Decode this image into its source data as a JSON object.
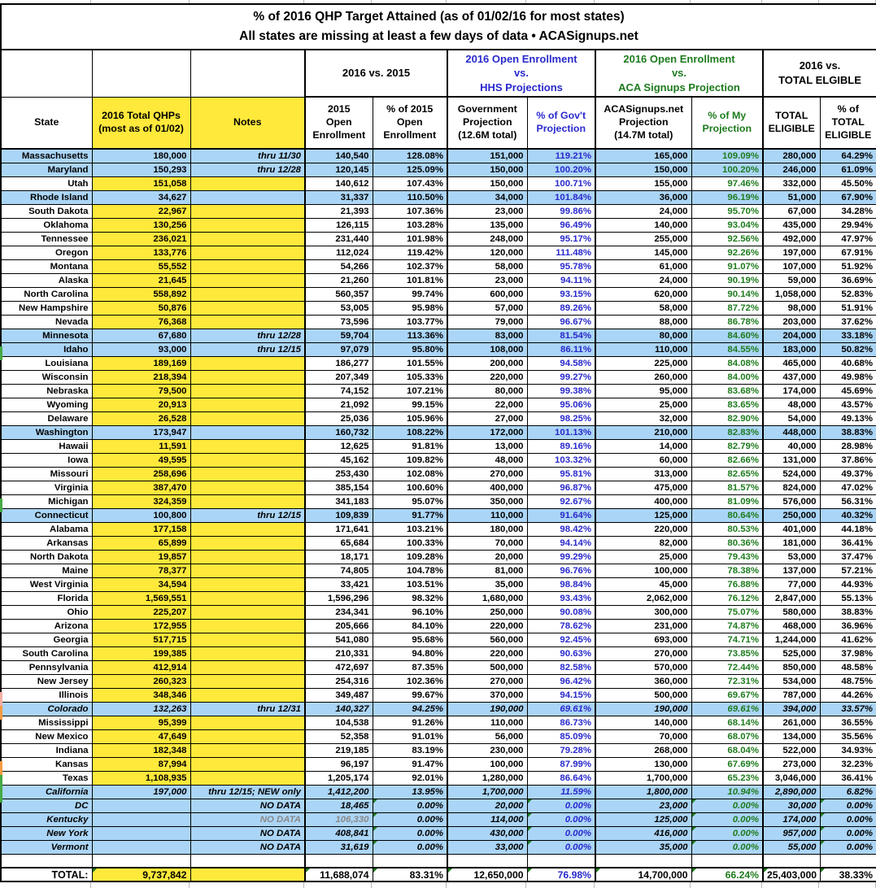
{
  "title": {
    "line1": "% of 2016 QHP Target Attained (as of 01/02/16 for most states)",
    "line2": "All states are missing at least a few days of data • ACASignups.net"
  },
  "colors": {
    "highlight_yellow": "#FFE93B",
    "highlight_blue": "#ABD5F6",
    "gov_projection_text": "#2929CC",
    "my_projection_text": "#1E7B1E",
    "marker_green": "#44AA44",
    "marker_orange": "#F59B42",
    "marker_salmon": "#F4AFA4"
  },
  "group_headers": [
    {
      "label": "",
      "span": 1,
      "color": "black",
      "grp": false
    },
    {
      "label": "",
      "span": 1,
      "color": "black",
      "grp": false
    },
    {
      "label": "",
      "span": 1,
      "color": "black",
      "grp": false
    },
    {
      "label": "2016 vs. 2015",
      "span": 2,
      "color": "black",
      "grp": true
    },
    {
      "label": "2016 Open Enrollment\nvs.\nHHS Projections",
      "span": 2,
      "color": "blue",
      "grp": true
    },
    {
      "label": "2016 Open Enrollment\nvs.\nACA Signups Projection",
      "span": 2,
      "color": "green",
      "grp": true
    },
    {
      "label": "2016 vs.\nTOTAL ELGIBLE",
      "span": 2,
      "color": "black",
      "grp": true
    }
  ],
  "columns": [
    {
      "key": "state",
      "label": "State",
      "color": "black"
    },
    {
      "key": "qhp",
      "label": "2016 Total QHPs\n(most as of 01/02)",
      "color": "black",
      "yellow": true
    },
    {
      "key": "notes",
      "label": "Notes",
      "color": "black",
      "yellow": true
    },
    {
      "key": "e2015",
      "label": "2015\nOpen\nEnrollment",
      "color": "black",
      "thickLeft": true
    },
    {
      "key": "p2015",
      "label": "% of 2015\nOpen\nEnrollment",
      "color": "black"
    },
    {
      "key": "gov",
      "label": "Government\nProjection\n(12.6M total)",
      "color": "black",
      "thickLeft": true
    },
    {
      "key": "pgov",
      "label": "% of Gov't\nProjection",
      "color": "blue"
    },
    {
      "key": "aca",
      "label": "ACASignups.net\nProjection\n(14.7M total)",
      "color": "black",
      "thickLeft": true
    },
    {
      "key": "pmy",
      "label": "% of My\nProjection",
      "color": "green"
    },
    {
      "key": "elig",
      "label": "TOTAL\nELIGIBLE",
      "color": "black",
      "thickLeft": true
    },
    {
      "key": "pelig",
      "label": "% of\nTOTAL\nELIGIBLE",
      "color": "black"
    }
  ],
  "rows": [
    {
      "state": "Massachusetts",
      "qhp": "180,000",
      "notes": "thru 11/30",
      "e2015": "140,540",
      "p2015": "128.08%",
      "gov": "151,000",
      "pgov": "119.21%",
      "aca": "165,000",
      "pmy": "109.09%",
      "elig": "280,000",
      "pelig": "64.29%",
      "hl": true
    },
    {
      "state": "Maryland",
      "qhp": "150,293",
      "notes": "thru 12/28",
      "e2015": "120,145",
      "p2015": "125.09%",
      "gov": "150,000",
      "pgov": "100.20%",
      "aca": "150,000",
      "pmy": "100.20%",
      "elig": "246,000",
      "pelig": "61.09%",
      "hl": true
    },
    {
      "state": "Utah",
      "qhp": "151,058",
      "notes": "",
      "e2015": "140,612",
      "p2015": "107.43%",
      "gov": "150,000",
      "pgov": "100.71%",
      "aca": "155,000",
      "pmy": "97.46%",
      "elig": "332,000",
      "pelig": "45.50%"
    },
    {
      "state": "Rhode Island",
      "qhp": "34,627",
      "notes": "",
      "e2015": "31,337",
      "p2015": "110.50%",
      "gov": "34,000",
      "pgov": "101.84%",
      "aca": "36,000",
      "pmy": "96.19%",
      "elig": "51,000",
      "pelig": "67.90%",
      "hl": true
    },
    {
      "state": "South Dakota",
      "qhp": "22,967",
      "notes": "",
      "e2015": "21,393",
      "p2015": "107.36%",
      "gov": "23,000",
      "pgov": "99.86%",
      "aca": "24,000",
      "pmy": "95.70%",
      "elig": "67,000",
      "pelig": "34.28%"
    },
    {
      "state": "Oklahoma",
      "qhp": "130,256",
      "notes": "",
      "e2015": "126,115",
      "p2015": "103.28%",
      "gov": "135,000",
      "pgov": "96.49%",
      "aca": "140,000",
      "pmy": "93.04%",
      "elig": "435,000",
      "pelig": "29.94%"
    },
    {
      "state": "Tennessee",
      "qhp": "236,021",
      "notes": "",
      "e2015": "231,440",
      "p2015": "101.98%",
      "gov": "248,000",
      "pgov": "95.17%",
      "aca": "255,000",
      "pmy": "92.56%",
      "elig": "492,000",
      "pelig": "47.97%"
    },
    {
      "state": "Oregon",
      "qhp": "133,776",
      "notes": "",
      "e2015": "112,024",
      "p2015": "119.42%",
      "gov": "120,000",
      "pgov": "111.48%",
      "aca": "145,000",
      "pmy": "92.26%",
      "elig": "197,000",
      "pelig": "67.91%"
    },
    {
      "state": "Montana",
      "qhp": "55,552",
      "notes": "",
      "e2015": "54,266",
      "p2015": "102.37%",
      "gov": "58,000",
      "pgov": "95.78%",
      "aca": "61,000",
      "pmy": "91.07%",
      "elig": "107,000",
      "pelig": "51.92%"
    },
    {
      "state": "Alaska",
      "qhp": "21,645",
      "notes": "",
      "e2015": "21,260",
      "p2015": "101.81%",
      "gov": "23,000",
      "pgov": "94.11%",
      "aca": "24,000",
      "pmy": "90.19%",
      "elig": "59,000",
      "pelig": "36.69%"
    },
    {
      "state": "North Carolina",
      "qhp": "558,892",
      "notes": "",
      "e2015": "560,357",
      "p2015": "99.74%",
      "gov": "600,000",
      "pgov": "93.15%",
      "aca": "620,000",
      "pmy": "90.14%",
      "elig": "1,058,000",
      "pelig": "52.83%"
    },
    {
      "state": "New Hampshire",
      "qhp": "50,876",
      "notes": "",
      "e2015": "53,005",
      "p2015": "95.98%",
      "gov": "57,000",
      "pgov": "89.26%",
      "aca": "58,000",
      "pmy": "87.72%",
      "elig": "98,000",
      "pelig": "51.91%"
    },
    {
      "state": "Nevada",
      "qhp": "76,368",
      "notes": "",
      "e2015": "73,596",
      "p2015": "103.77%",
      "gov": "79,000",
      "pgov": "96.67%",
      "aca": "88,000",
      "pmy": "86.78%",
      "elig": "203,000",
      "pelig": "37.62%"
    },
    {
      "state": "Minnesota",
      "qhp": "67,680",
      "notes": "thru 12/28",
      "e2015": "59,704",
      "p2015": "113.36%",
      "gov": "83,000",
      "pgov": "81.54%",
      "aca": "80,000",
      "pmy": "84.60%",
      "elig": "204,000",
      "pelig": "33.18%",
      "hl": true
    },
    {
      "state": "Idaho",
      "qhp": "93,000",
      "notes": "thru 12/15",
      "e2015": "97,079",
      "p2015": "95.80%",
      "gov": "108,000",
      "pgov": "86.11%",
      "aca": "110,000",
      "pmy": "84.55%",
      "elig": "183,000",
      "pelig": "50.82%",
      "hl": true
    },
    {
      "state": "Louisiana",
      "qhp": "189,169",
      "notes": "",
      "e2015": "186,277",
      "p2015": "101.55%",
      "gov": "200,000",
      "pgov": "94.58%",
      "aca": "225,000",
      "pmy": "84.08%",
      "elig": "465,000",
      "pelig": "40.68%"
    },
    {
      "state": "Wisconsin",
      "qhp": "218,394",
      "notes": "",
      "e2015": "207,349",
      "p2015": "105.33%",
      "gov": "220,000",
      "pgov": "99.27%",
      "aca": "260,000",
      "pmy": "84.00%",
      "elig": "437,000",
      "pelig": "49.98%"
    },
    {
      "state": "Nebraska",
      "qhp": "79,500",
      "notes": "",
      "e2015": "74,152",
      "p2015": "107.21%",
      "gov": "80,000",
      "pgov": "99.38%",
      "aca": "95,000",
      "pmy": "83.68%",
      "elig": "174,000",
      "pelig": "45.69%"
    },
    {
      "state": "Wyoming",
      "qhp": "20,913",
      "notes": "",
      "e2015": "21,092",
      "p2015": "99.15%",
      "gov": "22,000",
      "pgov": "95.06%",
      "aca": "25,000",
      "pmy": "83.65%",
      "elig": "48,000",
      "pelig": "43.57%"
    },
    {
      "state": "Delaware",
      "qhp": "26,528",
      "notes": "",
      "e2015": "25,036",
      "p2015": "105.96%",
      "gov": "27,000",
      "pgov": "98.25%",
      "aca": "32,000",
      "pmy": "82.90%",
      "elig": "54,000",
      "pelig": "49.13%"
    },
    {
      "state": "Washington",
      "qhp": "173,947",
      "notes": "",
      "e2015": "160,732",
      "p2015": "108.22%",
      "gov": "172,000",
      "pgov": "101.13%",
      "aca": "210,000",
      "pmy": "82.83%",
      "elig": "448,000",
      "pelig": "38.83%",
      "hl": true
    },
    {
      "state": "Hawaii",
      "qhp": "11,591",
      "notes": "",
      "e2015": "12,625",
      "p2015": "91.81%",
      "gov": "13,000",
      "pgov": "89.16%",
      "aca": "14,000",
      "pmy": "82.79%",
      "elig": "40,000",
      "pelig": "28.98%"
    },
    {
      "state": "Iowa",
      "qhp": "49,595",
      "notes": "",
      "e2015": "45,162",
      "p2015": "109.82%",
      "gov": "48,000",
      "pgov": "103.32%",
      "aca": "60,000",
      "pmy": "82.66%",
      "elig": "131,000",
      "pelig": "37.86%"
    },
    {
      "state": "Missouri",
      "qhp": "258,696",
      "notes": "",
      "e2015": "253,430",
      "p2015": "102.08%",
      "gov": "270,000",
      "pgov": "95.81%",
      "aca": "313,000",
      "pmy": "82.65%",
      "elig": "524,000",
      "pelig": "49.37%"
    },
    {
      "state": "Virginia",
      "qhp": "387,470",
      "notes": "",
      "e2015": "385,154",
      "p2015": "100.60%",
      "gov": "400,000",
      "pgov": "96.87%",
      "aca": "475,000",
      "pmy": "81.57%",
      "elig": "824,000",
      "pelig": "47.02%"
    },
    {
      "state": "Michigan",
      "qhp": "324,359",
      "notes": "",
      "e2015": "341,183",
      "p2015": "95.07%",
      "gov": "350,000",
      "pgov": "92.67%",
      "aca": "400,000",
      "pmy": "81.09%",
      "elig": "576,000",
      "pelig": "56.31%"
    },
    {
      "state": "Connecticut",
      "qhp": "100,800",
      "notes": "thru 12/15",
      "e2015": "109,839",
      "p2015": "91.77%",
      "gov": "110,000",
      "pgov": "91.64%",
      "aca": "125,000",
      "pmy": "80.64%",
      "elig": "250,000",
      "pelig": "40.32%",
      "hl": true
    },
    {
      "state": "Alabama",
      "qhp": "177,158",
      "notes": "",
      "e2015": "171,641",
      "p2015": "103.21%",
      "gov": "180,000",
      "pgov": "98.42%",
      "aca": "220,000",
      "pmy": "80.53%",
      "elig": "401,000",
      "pelig": "44.18%"
    },
    {
      "state": "Arkansas",
      "qhp": "65,899",
      "notes": "",
      "e2015": "65,684",
      "p2015": "100.33%",
      "gov": "70,000",
      "pgov": "94.14%",
      "aca": "82,000",
      "pmy": "80.36%",
      "elig": "181,000",
      "pelig": "36.41%"
    },
    {
      "state": "North Dakota",
      "qhp": "19,857",
      "notes": "",
      "e2015": "18,171",
      "p2015": "109.28%",
      "gov": "20,000",
      "pgov": "99.29%",
      "aca": "25,000",
      "pmy": "79.43%",
      "elig": "53,000",
      "pelig": "37.47%"
    },
    {
      "state": "Maine",
      "qhp": "78,377",
      "notes": "",
      "e2015": "74,805",
      "p2015": "104.78%",
      "gov": "81,000",
      "pgov": "96.76%",
      "aca": "100,000",
      "pmy": "78.38%",
      "elig": "137,000",
      "pelig": "57.21%"
    },
    {
      "state": "West Virginia",
      "qhp": "34,594",
      "notes": "",
      "e2015": "33,421",
      "p2015": "103.51%",
      "gov": "35,000",
      "pgov": "98.84%",
      "aca": "45,000",
      "pmy": "76.88%",
      "elig": "77,000",
      "pelig": "44.93%"
    },
    {
      "state": "Florida",
      "qhp": "1,569,551",
      "notes": "",
      "e2015": "1,596,296",
      "p2015": "98.32%",
      "gov": "1,680,000",
      "pgov": "93.43%",
      "aca": "2,062,000",
      "pmy": "76.12%",
      "elig": "2,847,000",
      "pelig": "55.13%"
    },
    {
      "state": "Ohio",
      "qhp": "225,207",
      "notes": "",
      "e2015": "234,341",
      "p2015": "96.10%",
      "gov": "250,000",
      "pgov": "90.08%",
      "aca": "300,000",
      "pmy": "75.07%",
      "elig": "580,000",
      "pelig": "38.83%"
    },
    {
      "state": "Arizona",
      "qhp": "172,955",
      "notes": "",
      "e2015": "205,666",
      "p2015": "84.10%",
      "gov": "220,000",
      "pgov": "78.62%",
      "aca": "231,000",
      "pmy": "74.87%",
      "elig": "468,000",
      "pelig": "36.96%"
    },
    {
      "state": "Georgia",
      "qhp": "517,715",
      "notes": "",
      "e2015": "541,080",
      "p2015": "95.68%",
      "gov": "560,000",
      "pgov": "92.45%",
      "aca": "693,000",
      "pmy": "74.71%",
      "elig": "1,244,000",
      "pelig": "41.62%"
    },
    {
      "state": "South Carolina",
      "qhp": "199,385",
      "notes": "",
      "e2015": "210,331",
      "p2015": "94.80%",
      "gov": "220,000",
      "pgov": "90.63%",
      "aca": "270,000",
      "pmy": "73.85%",
      "elig": "525,000",
      "pelig": "37.98%"
    },
    {
      "state": "Pennsylvania",
      "qhp": "412,914",
      "notes": "",
      "e2015": "472,697",
      "p2015": "87.35%",
      "gov": "500,000",
      "pgov": "82.58%",
      "aca": "570,000",
      "pmy": "72.44%",
      "elig": "850,000",
      "pelig": "48.58%"
    },
    {
      "state": "New Jersey",
      "qhp": "260,323",
      "notes": "",
      "e2015": "254,316",
      "p2015": "102.36%",
      "gov": "270,000",
      "pgov": "96.42%",
      "aca": "360,000",
      "pmy": "72.31%",
      "elig": "534,000",
      "pelig": "48.75%"
    },
    {
      "state": "Illinois",
      "qhp": "348,346",
      "notes": "",
      "e2015": "349,487",
      "p2015": "99.67%",
      "gov": "370,000",
      "pgov": "94.15%",
      "aca": "500,000",
      "pmy": "69.67%",
      "elig": "787,000",
      "pelig": "44.26%"
    },
    {
      "state": "Colorado",
      "qhp": "132,263",
      "notes": "thru 12/31",
      "e2015": "140,327",
      "p2015": "94.25%",
      "gov": "190,000",
      "pgov": "69.61%",
      "aca": "190,000",
      "pmy": "69.61%",
      "elig": "394,000",
      "pelig": "33.57%",
      "hl": true,
      "it": true
    },
    {
      "state": "Mississippi",
      "qhp": "95,399",
      "notes": "",
      "e2015": "104,538",
      "p2015": "91.26%",
      "gov": "110,000",
      "pgov": "86.73%",
      "aca": "140,000",
      "pmy": "68.14%",
      "elig": "261,000",
      "pelig": "36.55%"
    },
    {
      "state": "New Mexico",
      "qhp": "47,649",
      "notes": "",
      "e2015": "52,358",
      "p2015": "91.01%",
      "gov": "56,000",
      "pgov": "85.09%",
      "aca": "70,000",
      "pmy": "68.07%",
      "elig": "134,000",
      "pelig": "35.56%"
    },
    {
      "state": "Indiana",
      "qhp": "182,348",
      "notes": "",
      "e2015": "219,185",
      "p2015": "83.19%",
      "gov": "230,000",
      "pgov": "79.28%",
      "aca": "268,000",
      "pmy": "68.04%",
      "elig": "522,000",
      "pelig": "34.93%"
    },
    {
      "state": "Kansas",
      "qhp": "87,994",
      "notes": "",
      "e2015": "96,197",
      "p2015": "91.47%",
      "gov": "100,000",
      "pgov": "87.99%",
      "aca": "130,000",
      "pmy": "67.69%",
      "elig": "273,000",
      "pelig": "32.23%"
    },
    {
      "state": "Texas",
      "qhp": "1,108,935",
      "notes": "",
      "e2015": "1,205,174",
      "p2015": "92.01%",
      "gov": "1,280,000",
      "pgov": "86.64%",
      "aca": "1,700,000",
      "pmy": "65.23%",
      "elig": "3,046,000",
      "pelig": "36.41%"
    },
    {
      "state": "California",
      "qhp": "197,000",
      "notes": "thru 12/15; NEW only",
      "e2015": "1,412,200",
      "p2015": "13.95%",
      "gov": "1,700,000",
      "pgov": "11.59%",
      "aca": "1,800,000",
      "pmy": "10.94%",
      "elig": "2,890,000",
      "pelig": "6.82%",
      "hl": true,
      "it": true
    },
    {
      "state": "DC",
      "qhp": "",
      "notes": "NO DATA",
      "e2015": "18,465",
      "p2015": "0.00%",
      "gov": "20,000",
      "pgov": "0.00%",
      "aca": "23,000",
      "pmy": "0.00%",
      "elig": "30,000",
      "pelig": "0.00%",
      "hl": true,
      "it": true,
      "tri": true
    },
    {
      "state": "Kentucky",
      "qhp": "",
      "notes": "NO DATA",
      "e2015": "106,330",
      "p2015": "0.00%",
      "gov": "114,000",
      "pgov": "0.00%",
      "aca": "125,000",
      "pmy": "0.00%",
      "elig": "174,000",
      "pelig": "0.00%",
      "hl": true,
      "it": true,
      "tri": true,
      "gray": true
    },
    {
      "state": "New York",
      "qhp": "",
      "notes": "NO DATA",
      "e2015": "408,841",
      "p2015": "0.00%",
      "gov": "430,000",
      "pgov": "0.00%",
      "aca": "416,000",
      "pmy": "0.00%",
      "elig": "957,000",
      "pelig": "0.00%",
      "hl": true,
      "it": true,
      "tri": true
    },
    {
      "state": "Vermont",
      "qhp": "",
      "notes": "NO DATA",
      "e2015": "31,619",
      "p2015": "0.00%",
      "gov": "33,000",
      "pgov": "0.00%",
      "aca": "35,000",
      "pmy": "0.00%",
      "elig": "55,000",
      "pelig": "0.00%",
      "hl": true,
      "it": true,
      "tri": true
    }
  ],
  "total_row": {
    "state": "TOTAL:",
    "qhp": "9,737,842",
    "notes": "",
    "e2015": "11,688,074",
    "p2015": "83.31%",
    "gov": "12,650,000",
    "pgov": "76.98%",
    "aca": "14,700,000",
    "pmy": "66.24%",
    "elig": "25,403,000",
    "pelig": "38.33%"
  },
  "edge_markers": [
    {
      "state": "Idaho",
      "color": "#44AA44"
    },
    {
      "state": "Michigan",
      "color": "#44AA44"
    },
    {
      "state": "Illinois",
      "color": "#F4AFA4"
    },
    {
      "state": "Colorado",
      "color": "#F59B42"
    },
    {
      "state": "Kansas",
      "color": "#F59B42"
    },
    {
      "state": "Texas",
      "color": "#44AA44"
    },
    {
      "state": "California",
      "color": "#44AA44"
    }
  ]
}
